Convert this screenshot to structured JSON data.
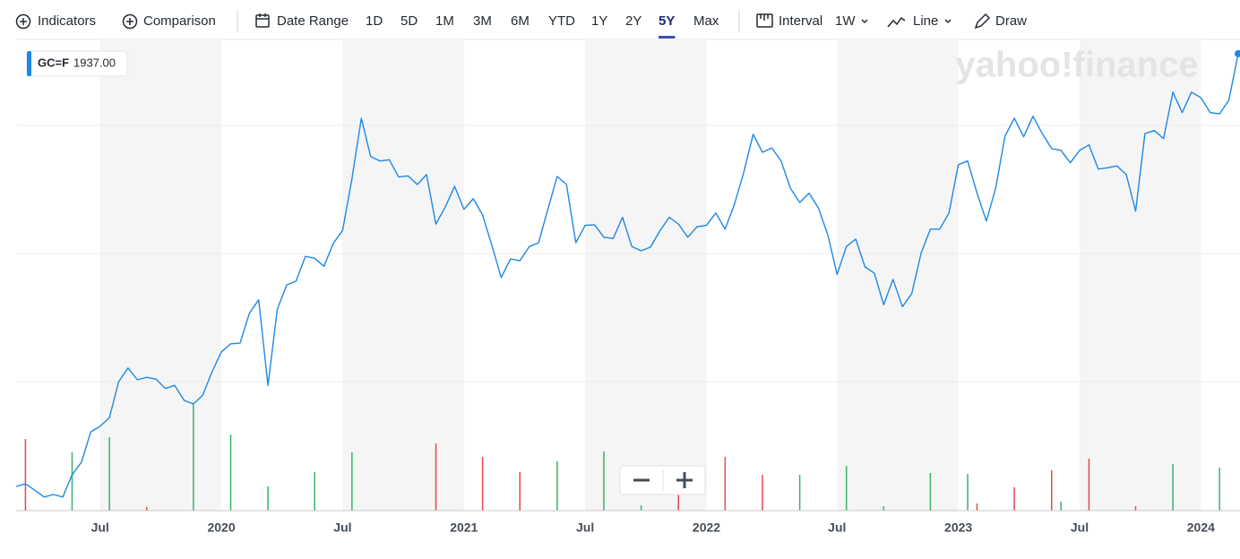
{
  "toolbar": {
    "indicators": "Indicators",
    "comparison": "Comparison",
    "date_range": "Date Range",
    "ranges": [
      "1D",
      "5D",
      "1M",
      "3M",
      "6M",
      "YTD",
      "1Y",
      "2Y",
      "5Y",
      "Max"
    ],
    "selected": 8,
    "interval": "Interval",
    "interval_value": "1W",
    "chart_type": "Line",
    "draw": "Draw"
  },
  "watermark": "yahoo!finance",
  "chart_data": {
    "type": "line",
    "categories": [
      null,
      null,
      null,
      null,
      null,
      null,
      null,
      null,
      null,
      "Jul",
      null,
      null,
      null,
      null,
      null,
      null,
      null,
      null,
      null,
      null,
      null,
      null,
      "2020",
      null,
      null,
      null,
      null,
      null,
      null,
      null,
      null,
      null,
      null,
      null,
      null,
      "Jul",
      null,
      null,
      null,
      null,
      null,
      null,
      null,
      null,
      null,
      null,
      null,
      null,
      "2021",
      null,
      null,
      null,
      null,
      null,
      null,
      null,
      null,
      null,
      null,
      null,
      null,
      "Jul",
      null,
      null,
      null,
      null,
      null,
      null,
      null,
      null,
      null,
      null,
      null,
      null,
      "2022",
      null,
      null,
      null,
      null,
      null,
      null,
      null,
      null,
      null,
      null,
      null,
      null,
      null,
      "Jul",
      null,
      null,
      null,
      null,
      null,
      null,
      null,
      null,
      null,
      null,
      null,
      null,
      "2023",
      null,
      null,
      null,
      null,
      null,
      null,
      null,
      null,
      null,
      null,
      null,
      null,
      "Jul",
      null,
      null,
      null,
      null,
      null,
      null,
      null,
      null,
      null,
      null,
      null,
      null,
      "2024",
      null,
      null,
      null,
      null
    ],
    "series": [
      {
        "name": "GC=F",
        "color": "#1e88e5",
        "values": [
          1239,
          1243,
          1233,
          1222,
          1226,
          1222,
          1258,
          1278,
          1327,
          1336,
          1350,
          1408,
          1430,
          1411,
          1415,
          1412,
          1397,
          1402,
          1378,
          1372,
          1386,
          1424,
          1456,
          1469,
          1470,
          1518,
          1540,
          1402,
          1525,
          1564,
          1570,
          1610,
          1607,
          1594,
          1631,
          1652,
          1735,
          1833,
          1771,
          1764,
          1766,
          1738,
          1740,
          1726,
          1742,
          1662,
          1690,
          1723,
          1686,
          1703,
          1677,
          1628,
          1576,
          1606,
          1603,
          1626,
          1632,
          1686,
          1739,
          1726,
          1632,
          1660,
          1661,
          1641,
          1639,
          1673,
          1626,
          1619,
          1625,
          1651,
          1673,
          1662,
          1641,
          1658,
          1660,
          1680,
          1654,
          1694,
          1746,
          1807,
          1778,
          1785,
          1764,
          1720,
          1697,
          1712,
          1688,
          1645,
          1581,
          1626,
          1638,
          1593,
          1583,
          1532,
          1573,
          1529,
          1550,
          1615,
          1654,
          1654,
          1680,
          1758,
          1764,
          1712,
          1667,
          1720,
          1804,
          1833,
          1803,
          1836,
          1808,
          1784,
          1781,
          1761,
          1781,
          1790,
          1751,
          1753,
          1756,
          1742,
          1683,
          1808,
          1813,
          1800,
          1875,
          1842,
          1875,
          1866,
          1842,
          1840,
          1862,
          1937
        ]
      }
    ],
    "price_label": "1937.00",
    "ylim": [
      1200,
      1960
    ],
    "volume": {
      "vlim": [
        0,
        130
      ],
      "values": [
        null,
        80,
        null,
        null,
        null,
        null,
        65,
        null,
        null,
        null,
        82,
        null,
        null,
        null,
        4,
        null,
        null,
        null,
        null,
        120,
        null,
        null,
        null,
        85,
        null,
        null,
        null,
        27,
        null,
        null,
        null,
        null,
        43,
        null,
        null,
        null,
        65,
        null,
        null,
        null,
        null,
        null,
        null,
        null,
        null,
        75,
        null,
        null,
        null,
        null,
        60,
        null,
        null,
        null,
        43,
        null,
        null,
        null,
        55,
        null,
        null,
        null,
        null,
        66,
        null,
        null,
        null,
        6,
        null,
        null,
        null,
        30,
        null,
        null,
        null,
        null,
        60,
        null,
        null,
        null,
        40,
        null,
        null,
        null,
        40,
        null,
        null,
        null,
        null,
        50,
        null,
        null,
        null,
        5,
        null,
        null,
        null,
        null,
        42,
        null,
        null,
        null,
        41,
        8,
        null,
        null,
        null,
        26,
        null,
        null,
        null,
        45,
        10,
        null,
        null,
        58,
        null,
        null,
        null,
        null,
        5,
        null,
        null,
        null,
        52,
        null,
        null,
        null,
        null,
        48,
        null,
        null
      ],
      "colors": [
        null,
        "#e8484d",
        null,
        null,
        null,
        null,
        "#3bb16c",
        null,
        null,
        null,
        "#3bb16c",
        null,
        null,
        null,
        "#e8484d",
        null,
        null,
        null,
        null,
        "#3bb16c",
        null,
        null,
        null,
        "#3bb16c",
        null,
        null,
        null,
        "#3bb16c",
        null,
        null,
        null,
        null,
        "#3bb16c",
        null,
        null,
        null,
        "#3bb16c",
        null,
        null,
        null,
        null,
        null,
        null,
        null,
        null,
        "#e8484d",
        null,
        null,
        null,
        null,
        "#e8484d",
        null,
        null,
        null,
        "#e8484d",
        null,
        null,
        null,
        "#3bb16c",
        null,
        null,
        null,
        null,
        "#3bb16c",
        null,
        null,
        null,
        "#3bb16c",
        null,
        null,
        null,
        "#e8484d",
        null,
        null,
        null,
        null,
        "#e8484d",
        null,
        null,
        null,
        "#e8484d",
        null,
        null,
        null,
        "#3bb16c",
        null,
        null,
        null,
        null,
        "#3bb16c",
        null,
        null,
        null,
        "#3bb16c",
        null,
        null,
        null,
        null,
        "#3bb16c",
        null,
        null,
        null,
        "#3bb16c",
        "#e8484d",
        null,
        null,
        null,
        "#e8484d",
        null,
        null,
        null,
        "#e8484d",
        "#3bb16c",
        null,
        null,
        "#e8484d",
        null,
        null,
        null,
        null,
        "#e8484d",
        null,
        null,
        null,
        "#3bb16c",
        null,
        null,
        null,
        null,
        "#3bb16c",
        null,
        null
      ]
    }
  }
}
